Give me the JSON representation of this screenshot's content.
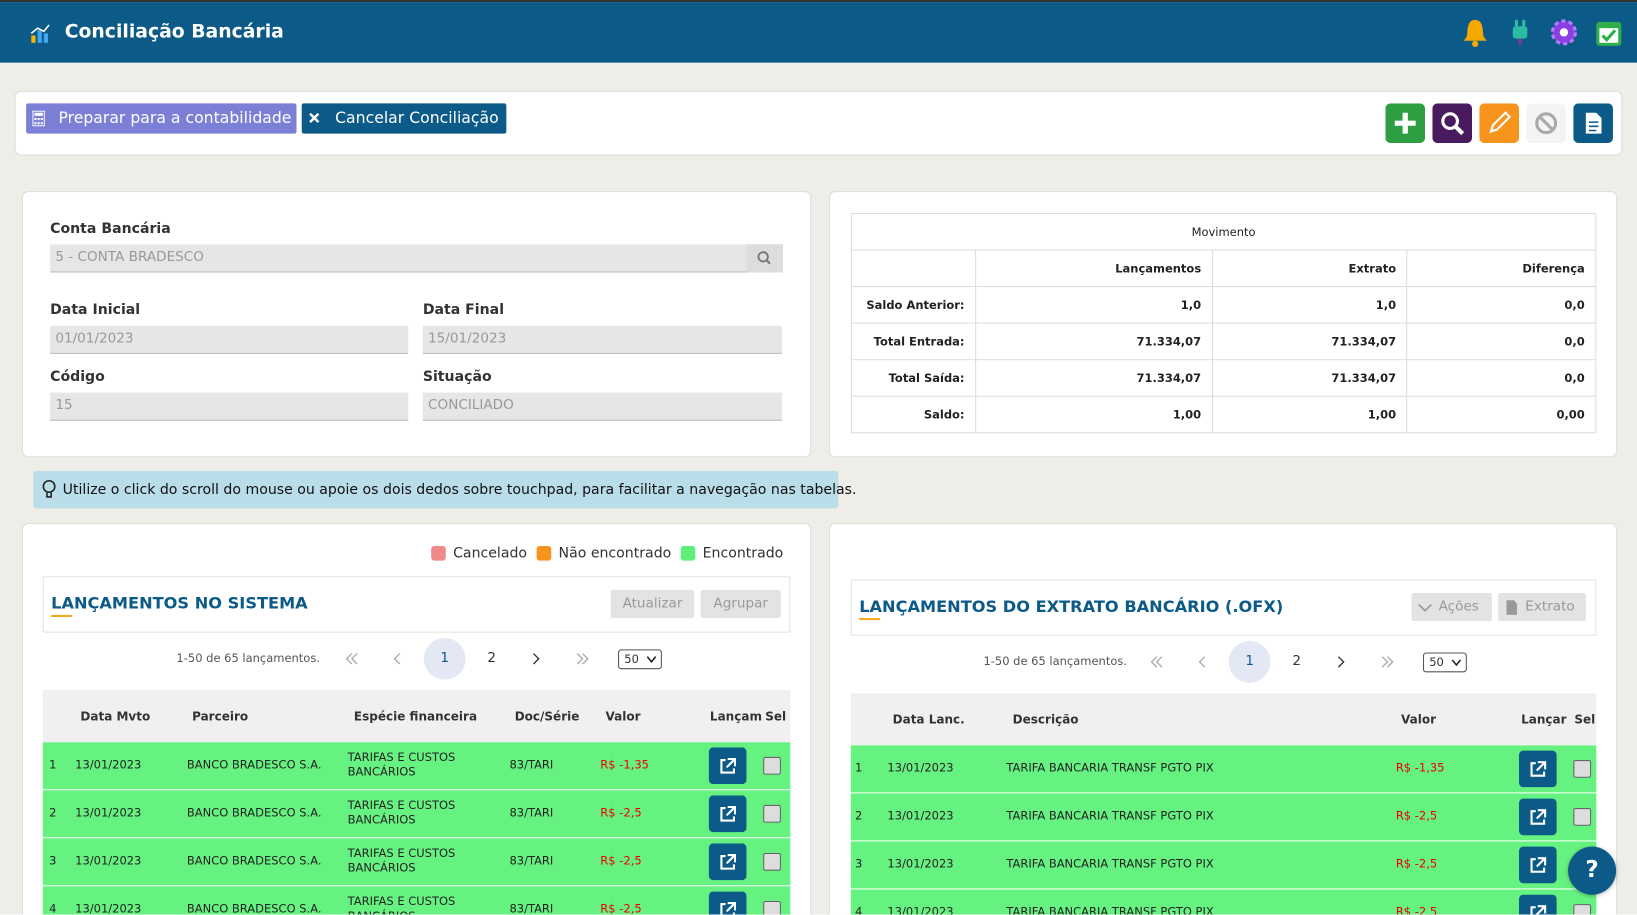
{
  "header": {
    "title": "Conciliação Bancária"
  },
  "toolbar": {
    "buttons": [
      "Preparar para a contabilidade",
      "Cancelar Conciliação"
    ]
  },
  "form": {
    "fields": [
      {
        "label": "Conta Bancária",
        "value": "5 - CONTA BRADESCO"
      },
      {
        "label": "Data Inicial",
        "value": "01/01/2023"
      },
      {
        "label": "Data Final",
        "value": "15/01/2023"
      },
      {
        "label": "Código",
        "value": "15"
      },
      {
        "label": "Situação",
        "value": "CONCILIADO"
      }
    ]
  },
  "summary": {
    "title": "Movimento",
    "columns": [
      "Lançamentos",
      "Extrato",
      "Diferença"
    ],
    "rows": [
      {
        "label": "Saldo Anterior:",
        "values": [
          "1,0",
          "1,0",
          "0,0"
        ]
      },
      {
        "label": "Total Entrada:",
        "values": [
          "71.334,07",
          "71.334,07",
          "0,0"
        ]
      },
      {
        "label": "Total Saída:",
        "values": [
          "71.334,07",
          "71.334,07",
          "0,0"
        ]
      },
      {
        "label": "Saldo:",
        "values": [
          "1,00",
          "1,00",
          "0,00"
        ]
      }
    ]
  },
  "tip": "Utilize o click do scroll do mouse ou apoie os dois dedos sobre touchpad, para facilitar a navegação nas tabelas.",
  "legend": [
    "Cancelado",
    "Não encontrado",
    "Encontrado"
  ],
  "left_table": {
    "title": "LANÇAMENTOS NO SISTEMA",
    "buttons": [
      "Atualizar",
      "Agrupar"
    ],
    "info": "1-50 de 65 lançamentos.",
    "pages": [
      "1",
      "2"
    ],
    "page_size": "50",
    "columns": [
      "Data Mvto",
      "Parceiro",
      "Espécie financeira",
      "Doc/Série",
      "Valor",
      "Lançam",
      "Sel"
    ],
    "rows": [
      [
        "1",
        "13/01/2023",
        "BANCO BRADESCO S.A.",
        "TARIFAS E CUSTOS BANCÁRIOS",
        "83/TARI",
        "R$ -1,35"
      ],
      [
        "2",
        "13/01/2023",
        "BANCO BRADESCO S.A.",
        "TARIFAS E CUSTOS BANCÁRIOS",
        "83/TARI",
        "R$ -2,5"
      ],
      [
        "3",
        "13/01/2023",
        "BANCO BRADESCO S.A.",
        "TARIFAS E CUSTOS BANCÁRIOS",
        "83/TARI",
        "R$ -2,5"
      ],
      [
        "4",
        "13/01/2023",
        "BANCO BRADESCO S.A.",
        "TARIFAS E CUSTOS BANCÁRIOS",
        "83/TARI",
        "R$ -2,5"
      ]
    ]
  },
  "right_table": {
    "title": "LANÇAMENTOS DO EXTRATO BANCÁRIO (.OFX)",
    "buttons": [
      "Ações",
      "Extrato"
    ],
    "info": "1-50 de 65 lançamentos.",
    "pages": [
      "1",
      "2"
    ],
    "page_size": "50",
    "columns": [
      "Data Lanc.",
      "Descrição",
      "Valor",
      "Lançar",
      "Sel"
    ],
    "rows": [
      [
        "1",
        "13/01/2023",
        "TARIFA BANCARIA TRANSF PGTO PIX",
        "R$ -1,35"
      ],
      [
        "2",
        "13/01/2023",
        "TARIFA BANCARIA TRANSF PGTO PIX",
        "R$ -2,5"
      ],
      [
        "3",
        "13/01/2023",
        "TARIFA BANCARIA TRANSF PGTO PIX",
        "R$ -2,5"
      ],
      [
        "4",
        "13/01/2023",
        "TARIFA BANCARIA TRANSF PGTO PIX",
        "R$ -2,5"
      ]
    ]
  },
  "help": "?"
}
